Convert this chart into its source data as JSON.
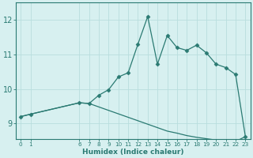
{
  "xlabel": "Humidex (Indice chaleur)",
  "bg_color": "#d7f0f0",
  "grid_color": "#b8dede",
  "line_color": "#2a7a72",
  "xlim": [
    -0.5,
    23.5
  ],
  "ylim": [
    8.55,
    12.5
  ],
  "yticks": [
    9,
    10,
    11,
    12
  ],
  "xticks": [
    0,
    1,
    6,
    7,
    8,
    9,
    10,
    11,
    12,
    13,
    14,
    15,
    16,
    17,
    18,
    19,
    20,
    21,
    22,
    23
  ],
  "series1_x": [
    0,
    1,
    6,
    7,
    8,
    9,
    10,
    11,
    12,
    13,
    14,
    15,
    16,
    17,
    18,
    19,
    20,
    21,
    22,
    23
  ],
  "series1_y": [
    9.2,
    9.27,
    9.6,
    9.58,
    9.82,
    9.98,
    10.35,
    10.47,
    11.3,
    12.1,
    10.72,
    11.55,
    11.2,
    11.12,
    11.27,
    11.05,
    10.72,
    10.62,
    10.42,
    8.62
  ],
  "series2_x": [
    0,
    1,
    6,
    7,
    8,
    9,
    10,
    11,
    12,
    13,
    14,
    15,
    16,
    17,
    18,
    19,
    20,
    21,
    22,
    23
  ],
  "series2_y": [
    9.2,
    9.27,
    9.6,
    9.58,
    9.48,
    9.38,
    9.28,
    9.18,
    9.08,
    8.98,
    8.88,
    8.78,
    8.72,
    8.65,
    8.6,
    8.56,
    8.52,
    8.5,
    8.48,
    8.62
  ]
}
